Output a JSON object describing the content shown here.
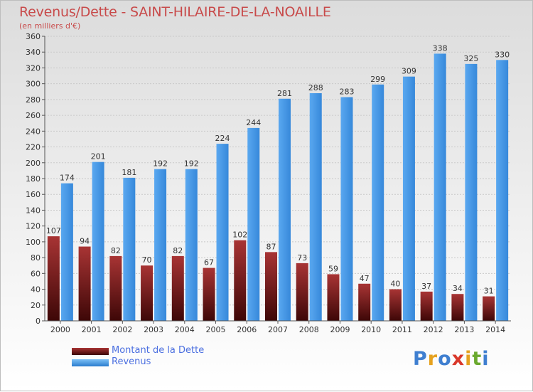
{
  "header": {
    "title": "Revenus/Dette - SAINT-HILAIRE-DE-LA-NOAILLE",
    "subtitle": "(en milliers d'€)"
  },
  "legend": {
    "items": [
      {
        "label": "Montant de la Dette",
        "color": "#7a1616"
      },
      {
        "label": "Revenus",
        "color": "#4496e8"
      }
    ]
  },
  "logo": {
    "letters": [
      {
        "ch": "P",
        "color": "#3f7fd0"
      },
      {
        "ch": "r",
        "color": "#e6a21f"
      },
      {
        "ch": "o",
        "color": "#3f7fd0"
      },
      {
        "ch": "x",
        "color": "#d9382b"
      },
      {
        "ch": "i",
        "color": "#e6a21f"
      },
      {
        "ch": "t",
        "color": "#6aa92e"
      },
      {
        "ch": "i",
        "color": "#3f7fd0"
      }
    ]
  },
  "chart_data": {
    "type": "bar",
    "title": "Revenus/Dette - SAINT-HILAIRE-DE-LA-NOAILLE",
    "subtitle": "(en milliers d'€)",
    "categories": [
      "2000",
      "2001",
      "2002",
      "2003",
      "2004",
      "2005",
      "2006",
      "2007",
      "2008",
      "2009",
      "2010",
      "2011",
      "2012",
      "2013",
      "2014"
    ],
    "series": [
      {
        "name": "Montant de la Dette",
        "color": "#7a1616",
        "values": [
          107,
          94,
          82,
          70,
          82,
          67,
          102,
          87,
          73,
          59,
          47,
          40,
          37,
          34,
          31
        ]
      },
      {
        "name": "Revenus",
        "color": "#4496e8",
        "values": [
          174,
          201,
          181,
          192,
          192,
          224,
          244,
          281,
          288,
          283,
          299,
          309,
          338,
          325,
          330
        ]
      }
    ],
    "ylim": [
      0,
      360
    ],
    "yticks": [
      0,
      20,
      40,
      60,
      80,
      100,
      120,
      140,
      160,
      180,
      200,
      220,
      240,
      260,
      280,
      300,
      320,
      340,
      360
    ],
    "grid": true,
    "legend_position": "bottom-left"
  }
}
